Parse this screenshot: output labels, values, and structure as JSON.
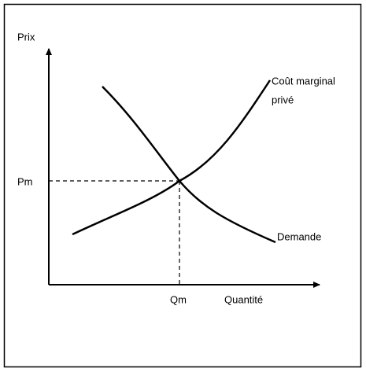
{
  "axes": {
    "y_label": "Prix",
    "x_label": "Quantité"
  },
  "equilibrium": {
    "price_label": "Pm",
    "quantity_label": "Qm"
  },
  "curves": {
    "supply": [
      "Coût marginal",
      "privé"
    ],
    "demand": "Demande"
  }
}
